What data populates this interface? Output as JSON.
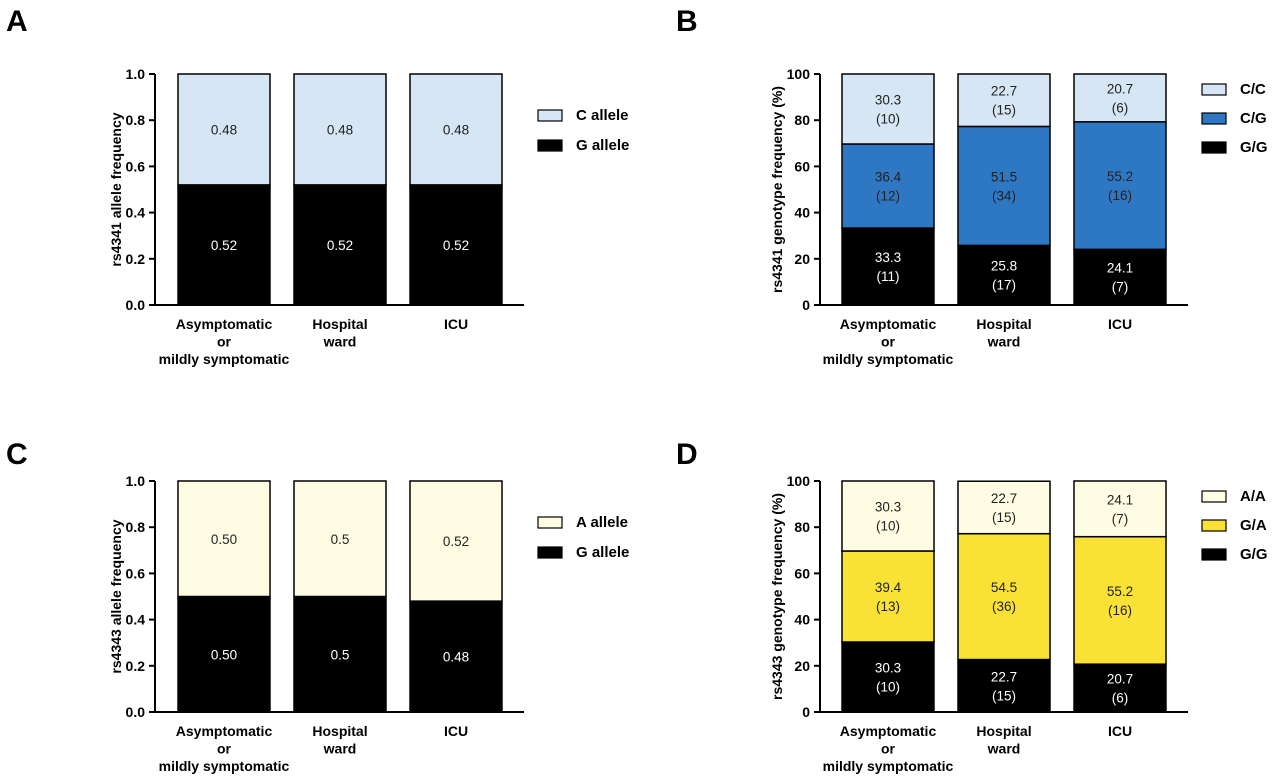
{
  "chart_data": [
    {
      "panel": "A",
      "type": "bar",
      "stacked": true,
      "ylabel": "rs4341 allele frequency",
      "ylim": [
        0,
        1.0
      ],
      "yticks": [
        "0.0",
        "0.2",
        "0.4",
        "0.6",
        "0.8",
        "1.0"
      ],
      "categories": [
        [
          "Asymptomatic",
          "or",
          "mildly symptomatic"
        ],
        [
          "Hospital",
          "ward"
        ],
        [
          "ICU"
        ]
      ],
      "legend_order": [
        1,
        0
      ],
      "series": [
        {
          "name": "G allele",
          "color": "#000000",
          "text_color": "#ffffff",
          "values": [
            0.52,
            0.52,
            0.52
          ],
          "labels": [
            [
              "0.52"
            ],
            [
              "0.52"
            ],
            [
              "0.52"
            ]
          ]
        },
        {
          "name": "C allele",
          "color": "#d6e6f5",
          "text_color": "#222222",
          "values": [
            0.48,
            0.48,
            0.48
          ],
          "labels": [
            [
              "0.48"
            ],
            [
              "0.48"
            ],
            [
              "0.48"
            ]
          ]
        }
      ]
    },
    {
      "panel": "B",
      "type": "bar",
      "stacked": true,
      "ylabel": "rs4341 genotype frequency (%)",
      "ylim": [
        0,
        100
      ],
      "yticks": [
        "0",
        "20",
        "40",
        "60",
        "80",
        "100"
      ],
      "categories": [
        [
          "Asymptomatic",
          "or",
          "mildly symptomatic"
        ],
        [
          "Hospital",
          "ward"
        ],
        [
          "ICU"
        ]
      ],
      "legend_order": [
        2,
        1,
        0
      ],
      "series": [
        {
          "name": "G/G",
          "color": "#000000",
          "text_color": "#ffffff",
          "values": [
            33.3,
            25.8,
            24.1
          ],
          "labels": [
            [
              "33.3",
              "(11)"
            ],
            [
              "25.8",
              "(17)"
            ],
            [
              "24.1",
              "(7)"
            ]
          ]
        },
        {
          "name": "C/G",
          "color": "#2e78c3",
          "text_color": "#222222",
          "values": [
            36.4,
            51.5,
            55.2
          ],
          "labels": [
            [
              "36.4",
              "(12)"
            ],
            [
              "51.5",
              "(34)"
            ],
            [
              "55.2",
              "(16)"
            ]
          ]
        },
        {
          "name": "C/C",
          "color": "#d6e6f5",
          "text_color": "#222222",
          "values": [
            30.3,
            22.7,
            20.7
          ],
          "labels": [
            [
              "30.3",
              "(10)"
            ],
            [
              "22.7",
              "(15)"
            ],
            [
              "20.7",
              "(6)"
            ]
          ]
        }
      ]
    },
    {
      "panel": "C",
      "type": "bar",
      "stacked": true,
      "ylabel": "rs4343 allele frequency",
      "ylim": [
        0,
        1.0
      ],
      "yticks": [
        "0.0",
        "0.2",
        "0.4",
        "0.6",
        "0.8",
        "1.0"
      ],
      "categories": [
        [
          "Asymptomatic",
          "or",
          "mildly symptomatic"
        ],
        [
          "Hospital",
          "ward"
        ],
        [
          "ICU"
        ]
      ],
      "legend_order": [
        1,
        0
      ],
      "series": [
        {
          "name": "G allele",
          "color": "#000000",
          "text_color": "#ffffff",
          "values": [
            0.5,
            0.5,
            0.48
          ],
          "labels": [
            [
              "0.50"
            ],
            [
              "0.5"
            ],
            [
              "0.48"
            ]
          ]
        },
        {
          "name": "A allele",
          "color": "#fefde3",
          "text_color": "#222222",
          "values": [
            0.5,
            0.5,
            0.52
          ],
          "labels": [
            [
              "0.50"
            ],
            [
              "0.5"
            ],
            [
              "0.52"
            ]
          ]
        }
      ]
    },
    {
      "panel": "D",
      "type": "bar",
      "stacked": true,
      "ylabel": "rs4343 genotype frequency (%)",
      "ylim": [
        0,
        100
      ],
      "yticks": [
        "0",
        "20",
        "40",
        "60",
        "80",
        "100"
      ],
      "categories": [
        [
          "Asymptomatic",
          "or",
          "mildly symptomatic"
        ],
        [
          "Hospital",
          "ward"
        ],
        [
          "ICU"
        ]
      ],
      "legend_order": [
        2,
        1,
        0
      ],
      "series": [
        {
          "name": "G/G",
          "color": "#000000",
          "text_color": "#ffffff",
          "values": [
            30.3,
            22.7,
            20.7
          ],
          "labels": [
            [
              "30.3",
              "(10)"
            ],
            [
              "22.7",
              "(15)"
            ],
            [
              "20.7",
              "(6)"
            ]
          ]
        },
        {
          "name": "G/A",
          "color": "#fae136",
          "text_color": "#222222",
          "values": [
            39.4,
            54.5,
            55.2
          ],
          "labels": [
            [
              "39.4",
              "(13)"
            ],
            [
              "54.5",
              "(36)"
            ],
            [
              "55.2",
              "(16)"
            ]
          ]
        },
        {
          "name": "A/A",
          "color": "#fefde3",
          "text_color": "#222222",
          "values": [
            30.3,
            22.7,
            24.1
          ],
          "labels": [
            [
              "30.3",
              "(10)"
            ],
            [
              "22.7",
              "(15)"
            ],
            [
              "24.1",
              "(7)"
            ]
          ]
        }
      ]
    }
  ]
}
